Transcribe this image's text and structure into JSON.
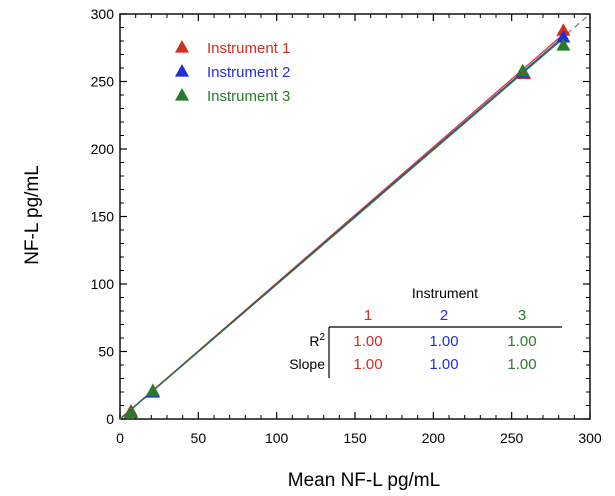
{
  "chart_data": {
    "type": "scatter",
    "title": "",
    "xlabel": "Mean NF-L pg/mL",
    "ylabel": "NF-L pg/mL",
    "xlim": [
      0,
      300
    ],
    "ylim": [
      0,
      300
    ],
    "xticks": [
      "0",
      "50",
      "100",
      "150",
      "200",
      "250",
      "300"
    ],
    "yticks": [
      "0",
      "50",
      "100",
      "150",
      "200",
      "250",
      "300"
    ],
    "grid": false,
    "legend_position": "top-left",
    "identity_line": {
      "style": "dashed",
      "color": "#888888",
      "from": [
        0,
        0
      ],
      "to": [
        300,
        300
      ]
    },
    "series": [
      {
        "name": "Instrument 1",
        "color": "#d62b20",
        "marker": "triangle",
        "points": [
          [
            7,
            6
          ],
          [
            21,
            21
          ],
          [
            258,
            256
          ],
          [
            283,
            288
          ]
        ],
        "fit": {
          "from": [
            0,
            0
          ],
          "to": [
            285,
            287
          ]
        }
      },
      {
        "name": "Instrument 2",
        "color": "#1f2fd6",
        "marker": "triangle",
        "points": [
          [
            7,
            5
          ],
          [
            21,
            20
          ],
          [
            257,
            257
          ],
          [
            283,
            283
          ]
        ],
        "fit": {
          "from": [
            0,
            0
          ],
          "to": [
            285,
            285
          ]
        }
      },
      {
        "name": "Instrument 3",
        "color": "#2a7a2a",
        "marker": "triangle",
        "points": [
          [
            7,
            5
          ],
          [
            21,
            21
          ],
          [
            257,
            258
          ],
          [
            283,
            277
          ]
        ],
        "fit": {
          "from": [
            0,
            0
          ],
          "to": [
            285,
            284
          ]
        }
      }
    ],
    "stats_table": {
      "header": "Instrument",
      "columns": [
        "1",
        "2",
        "3"
      ],
      "column_colors": [
        "#d62b20",
        "#1f2fd6",
        "#2a7a2a"
      ],
      "rows": [
        {
          "label": "R",
          "label_sup": "2",
          "values": [
            "1.00",
            "1.00",
            "1.00"
          ]
        },
        {
          "label": "Slope",
          "label_sup": "",
          "values": [
            "1.00",
            "1.00",
            "1.00"
          ]
        }
      ]
    }
  }
}
